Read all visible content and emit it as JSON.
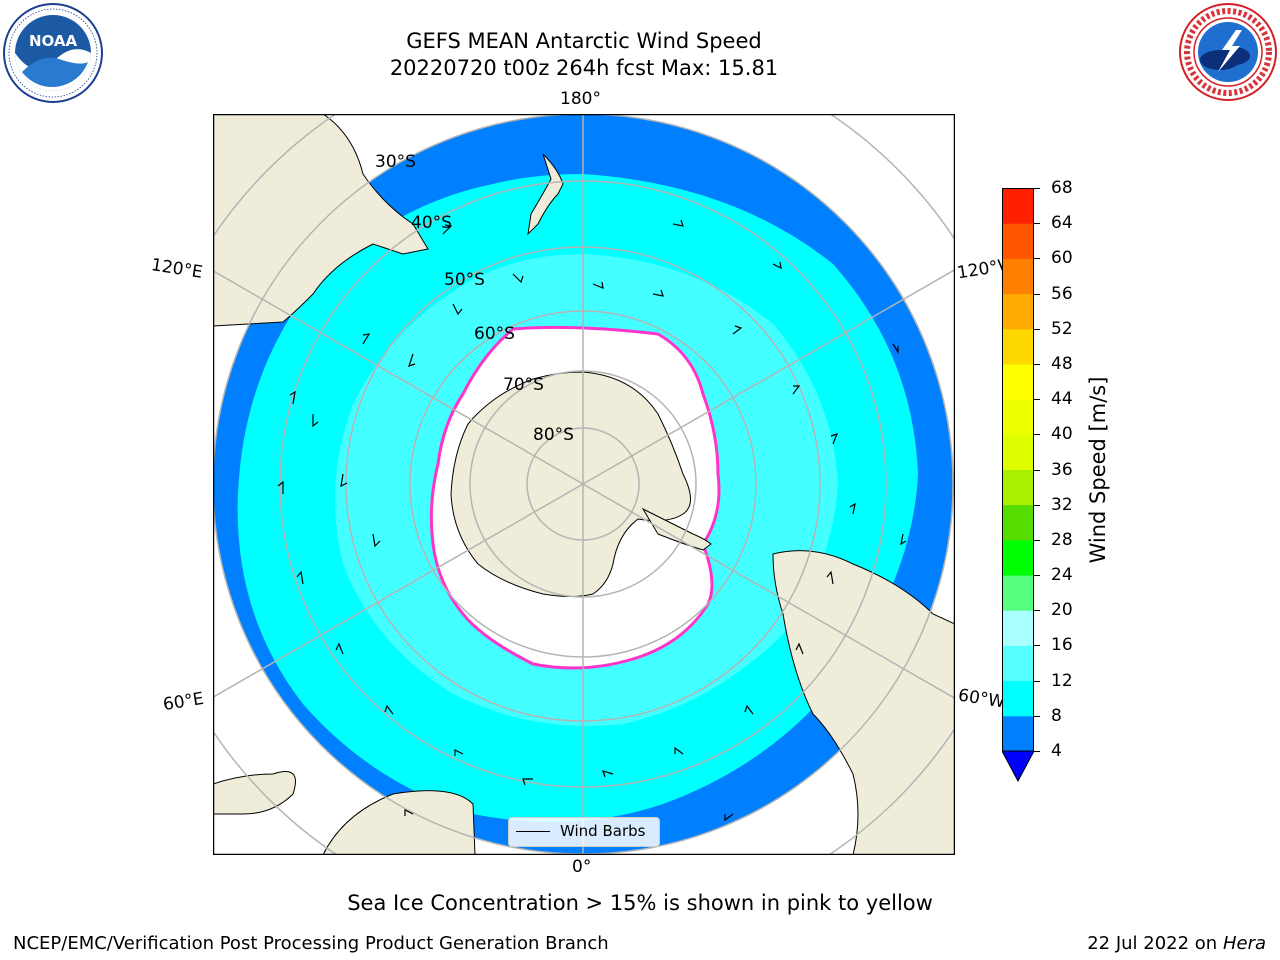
{
  "header": {
    "title_line1": "GEFS MEAN Antarctic Wind Speed",
    "title_line2": "20220720 t00z 264h fcst   Max: 15.81"
  },
  "logos": {
    "left": {
      "icon": "noaa-logo",
      "text": "NOAA",
      "ring_text": "NATIONAL OCEANIC AND ATMOSPHERIC ADMINISTRATION · U.S. DEPARTMENT OF COMMERCE"
    },
    "right": {
      "icon": "nws-logo",
      "ring_text": "NATIONAL WEATHER SERVICE"
    }
  },
  "map": {
    "projection": "south-polar-stereographic",
    "longitude_labels": {
      "top": "180°",
      "bottom": "0°",
      "upper_left": "120°E",
      "upper_right": "120°W",
      "lower_left": "60°E",
      "lower_right": "60°W"
    },
    "latitude_labels": [
      "30°S",
      "40°S",
      "50°S",
      "60°S",
      "70°S",
      "80°S"
    ],
    "colors": {
      "ocean_low": "#0080ff",
      "ocean_mid": "#00ffff",
      "ocean_high": "#55ffff",
      "land": "#efedda",
      "sea_ice": "#ffffff",
      "ice_edge": "#ff33cc",
      "grid": "#b4b4b4"
    },
    "legend": {
      "label": "Wind Barbs"
    }
  },
  "colorbar": {
    "title": "Wind Speed [m/s]",
    "ticks": [
      "4",
      "8",
      "12",
      "16",
      "20",
      "24",
      "28",
      "32",
      "36",
      "40",
      "44",
      "48",
      "52",
      "56",
      "60",
      "64",
      "68"
    ],
    "colors": [
      "#0080ff",
      "#00ffff",
      "#55ffff",
      "#aaffff",
      "#55ff80",
      "#00ff00",
      "#55dd00",
      "#aaee00",
      "#ddff00",
      "#eeff00",
      "#ffff00",
      "#ffd800",
      "#ffaa00",
      "#ff8000",
      "#ff5500",
      "#ff2000"
    ],
    "under_color": "#0000ff"
  },
  "footer": {
    "caption": "Sea Ice Concentration > 15% is shown in pink to yellow",
    "credit": "NCEP/EMC/Verification Post Processing Product Generation Branch",
    "date_prefix": "22 Jul 2022 on ",
    "machine": "Hera"
  }
}
